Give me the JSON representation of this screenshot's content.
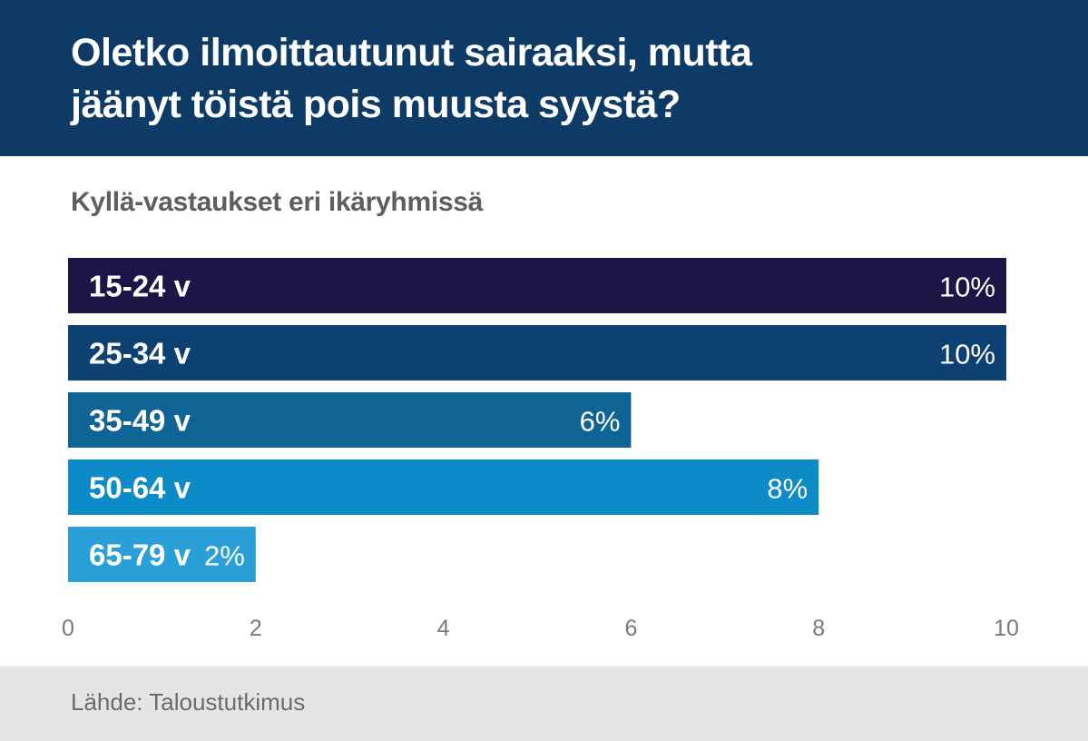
{
  "header": {
    "title_line1": "Oletko ilmoittautunut sairaaksi, mutta",
    "title_line2": "jäänyt töistä pois muusta syystä?"
  },
  "chart_data": {
    "type": "bar",
    "orientation": "horizontal",
    "title": "Oletko ilmoittautunut sairaaksi, mutta jäänyt töistä pois muusta syystä?",
    "subtitle": "Kyllä-vastaukset eri ikäryhmissä",
    "categories": [
      "15-24 v",
      "25-34 v",
      "35-49 v",
      "50-64 v",
      "65-79 v"
    ],
    "values": [
      10,
      10,
      6,
      8,
      2
    ],
    "value_labels": [
      "10%",
      "10%",
      "6%",
      "8%",
      "2%"
    ],
    "bar_colors": [
      "#1e1547",
      "#0d4173",
      "#0e6494",
      "#0c8bc7",
      "#2b9fd7"
    ],
    "xlim": [
      0,
      10
    ],
    "x_ticks": [
      0,
      2,
      4,
      6,
      8,
      10
    ],
    "x_tick_labels": [
      "0",
      "2",
      "4",
      "6",
      "8",
      "10"
    ],
    "xlabel": "",
    "ylabel": "",
    "grid": false
  },
  "footer": {
    "source": "Lähde: Taloustutkimus"
  }
}
